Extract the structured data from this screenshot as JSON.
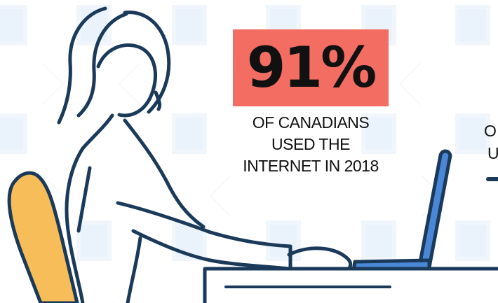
{
  "stat": {
    "value": "91%",
    "caption_lines": [
      "OF CANADIANS",
      "USED THE",
      "INTERNET IN 2018"
    ]
  },
  "edge_text": {
    "line1": "O",
    "line2": "U"
  },
  "colors": {
    "badge": "#f46d63",
    "chair": "#f7bd58",
    "laptop": "#4a87d6",
    "outline": "#1b3a5a",
    "pattern": "#e9f2fa"
  },
  "icons": [
    "woman-illustration",
    "chair-illustration",
    "laptop-illustration",
    "desk-illustration",
    "pattern-background"
  ]
}
